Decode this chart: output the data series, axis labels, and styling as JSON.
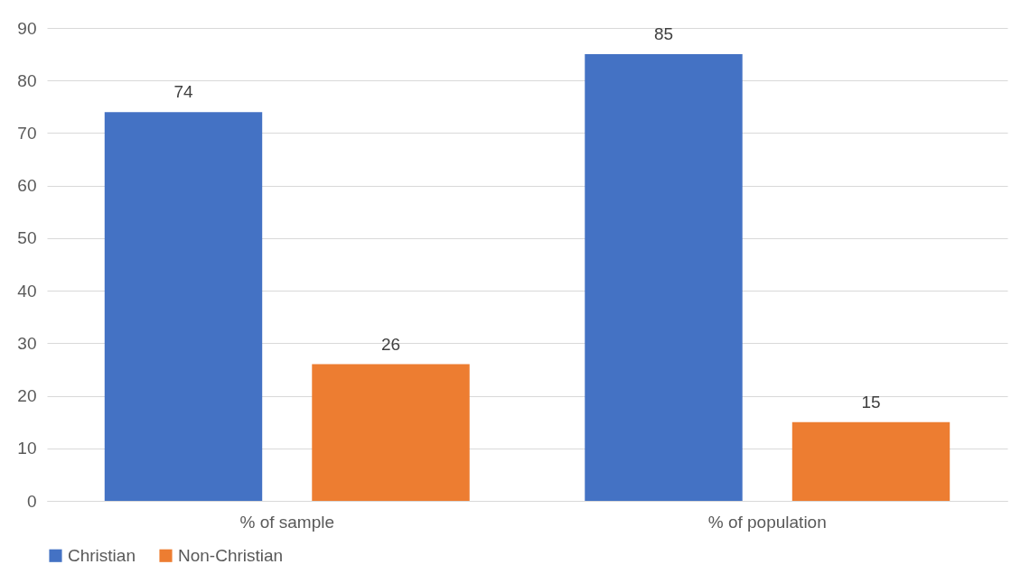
{
  "chart_data": {
    "type": "bar",
    "categories": [
      "% of sample",
      "% of population"
    ],
    "series": [
      {
        "name": "Christian",
        "color": "#4472c4",
        "values": [
          74,
          85
        ]
      },
      {
        "name": "Non-Christian",
        "color": "#ed7d31",
        "values": [
          26,
          15
        ]
      }
    ],
    "ylim": [
      0,
      90
    ],
    "yticks": [
      0,
      10,
      20,
      30,
      40,
      50,
      60,
      70,
      80,
      90
    ],
    "grid": "y",
    "legend": "bottom",
    "data_labels": true
  }
}
